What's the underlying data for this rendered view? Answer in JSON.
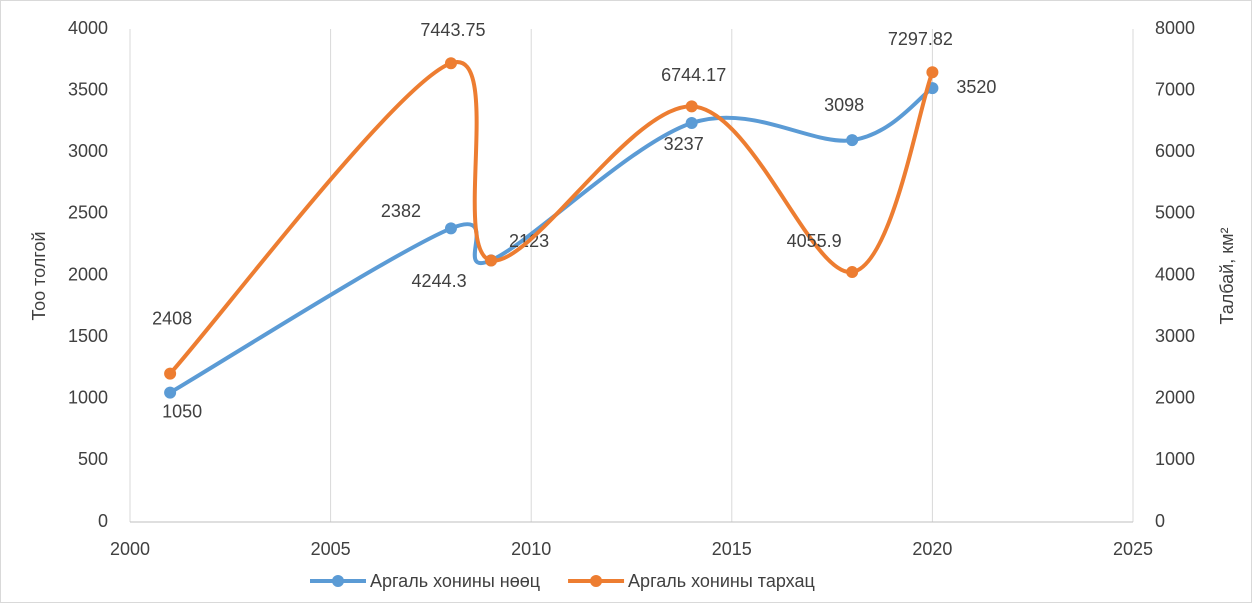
{
  "chart_data": {
    "type": "line",
    "x": [
      2001,
      2008,
      2009,
      2014,
      2018,
      2020
    ],
    "series": [
      {
        "name": "Аргаль хонины нөөц",
        "color": "#5b9bd5",
        "values": [
          1050,
          2382,
          2123,
          3237,
          3098,
          3520
        ]
      },
      {
        "name": "Аргаль хонины тархац",
        "color": "#ed7d31",
        "axis": "y2",
        "values": [
          2408,
          7443.75,
          4244.3,
          6744.17,
          4055.9,
          7297.82
        ]
      }
    ],
    "xlim": [
      2000,
      2025
    ],
    "xticks": [
      2000,
      2005,
      2010,
      2015,
      2020,
      2025
    ],
    "ylim": [
      0,
      4000
    ],
    "yticks": [
      0,
      500,
      1000,
      1500,
      2000,
      2500,
      3000,
      3500,
      4000
    ],
    "y2lim": [
      0,
      8000
    ],
    "y2ticks": [
      0,
      1000,
      2000,
      3000,
      4000,
      5000,
      6000,
      7000,
      8000
    ],
    "ylabel": "Тоо толгой",
    "y2label": "Талбай, км²",
    "xgrid": true,
    "smooth": true,
    "legend": "bottom"
  }
}
